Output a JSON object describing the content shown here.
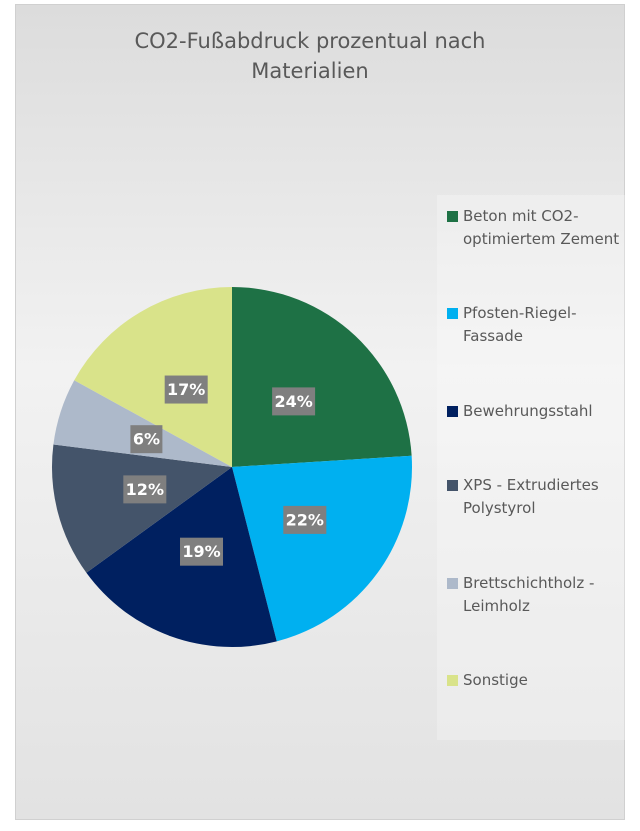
{
  "chart_data": {
    "type": "pie",
    "title": "CO2-Fußabdruck prozentual nach Materialien",
    "categories": [
      "Beton mit CO2-optimiertem Zement",
      "Pfosten-Riegel-Fassade",
      "Bewehrungsstahl",
      "XPS - Extrudiertes Polystyrol",
      "Brettschichtholz - Leimholz",
      "Sonstige"
    ],
    "values": [
      24,
      22,
      19,
      12,
      6,
      17
    ],
    "value_labels": [
      "24%",
      "22%",
      "19%",
      "12%",
      "6%",
      "17%"
    ],
    "colors": [
      "#1e7145",
      "#00b0f0",
      "#002060",
      "#44546a",
      "#adb9ca",
      "#d9e38a"
    ],
    "legend": "right"
  }
}
